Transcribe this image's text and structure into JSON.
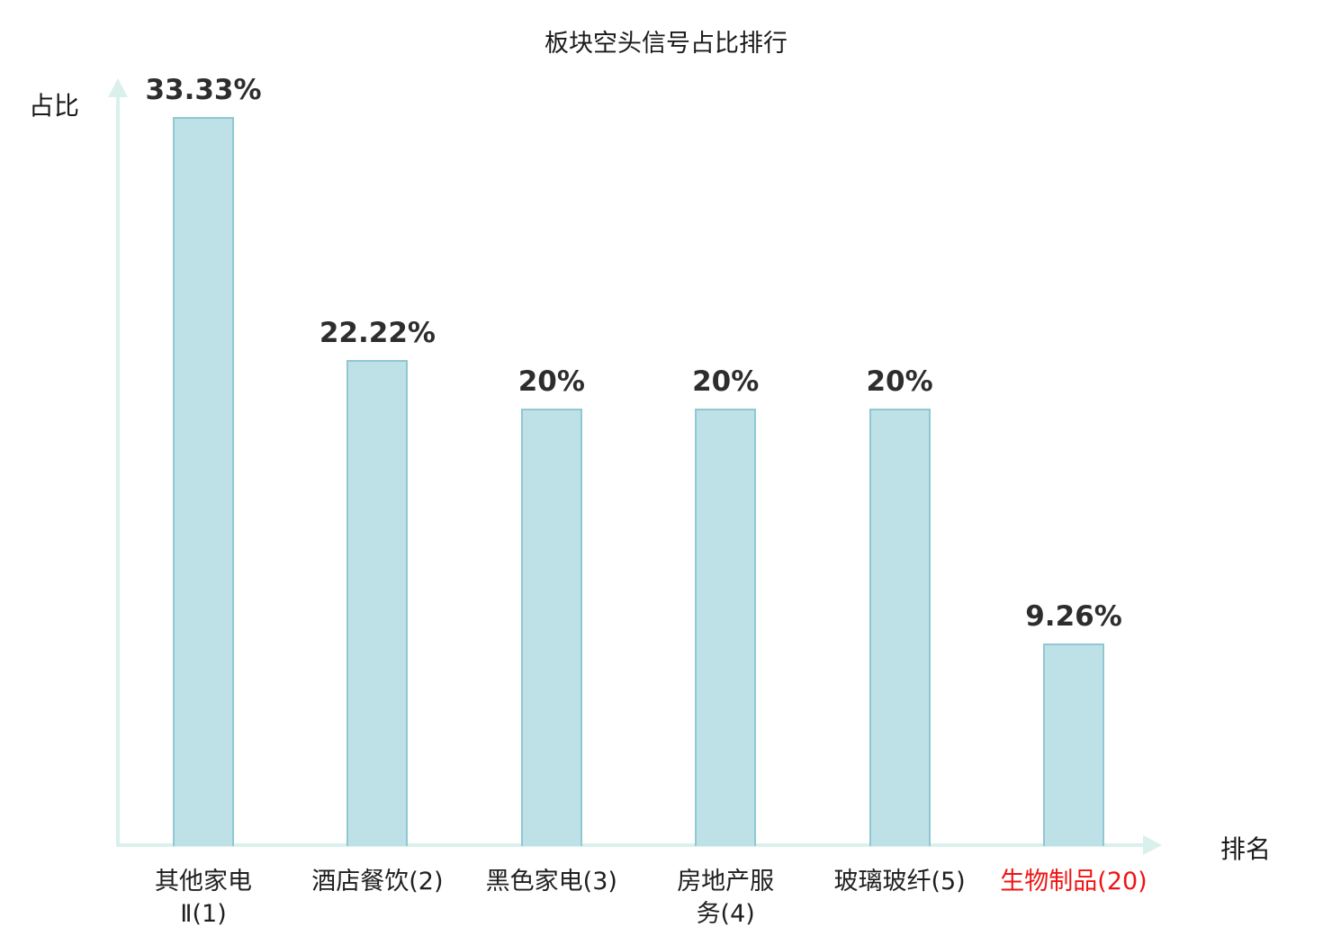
{
  "page": {
    "background": "#ffffff"
  },
  "chart_data": {
    "type": "bar",
    "title": "板块空头信号占比排行",
    "xlabel": "排名",
    "ylabel": "占比",
    "categories": [
      "其他家电Ⅱ(1)",
      "酒店餐饮(2)",
      "黑色家电(3)",
      "房地产服务(4)",
      "玻璃玻纤(5)",
      "生物制品(20)"
    ],
    "category_label_lines": [
      [
        "其他家电",
        "Ⅱ(1)"
      ],
      [
        "酒店餐饮(2)"
      ],
      [
        "黑色家电(3)"
      ],
      [
        "房地产服",
        "务(4)"
      ],
      [
        "玻璃玻纤(5)"
      ],
      [
        "生物制品(20)"
      ]
    ],
    "values": [
      33.33,
      22.22,
      20,
      20,
      20,
      9.26
    ],
    "value_labels": [
      "33.33%",
      "22.22%",
      "20%",
      "20%",
      "20%",
      "9.26%"
    ],
    "ylim": [
      0,
      35
    ],
    "grid": false,
    "legend": "none",
    "highlighted_category_index": 5,
    "colors": {
      "bar_fill": "#bde1e6",
      "bar_border": "#90c8d2",
      "axis": "#d9f0ec",
      "text": "#1f1f1f",
      "highlight": "#ef1414"
    }
  }
}
